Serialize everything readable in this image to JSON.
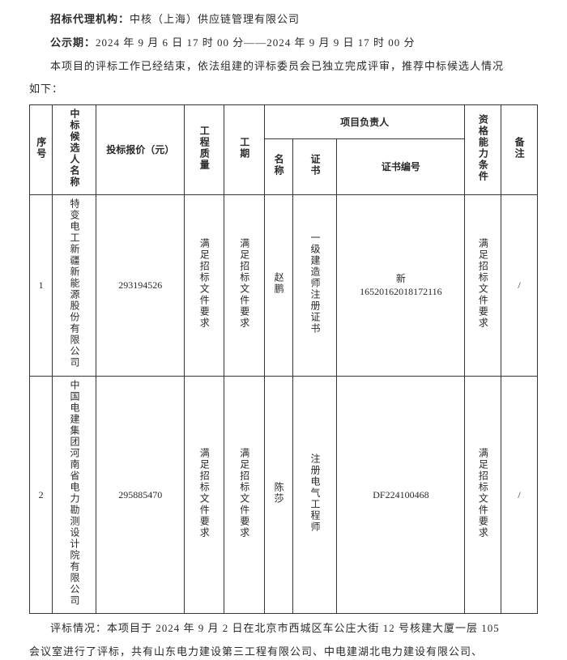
{
  "header": {
    "agency_label": "招标代理机构：",
    "agency": "中核（上海）供应链管理有限公司",
    "period_label": "公示期：",
    "period": "2024 年 9 月 6 日 17 时 00 分——2024 年 9 月 9 日 17 时 00 分",
    "intro1": "本项目的评标工作已经结束，依法组建的评标委员会已独立完成评审，推荐中标候选人情况",
    "intro2": "如下："
  },
  "table": {
    "headers": {
      "seq": "序号",
      "candidate": "中标候选人名称",
      "price": "投标报价（元）",
      "quality": "工程质量",
      "duration": "工期",
      "leader_group": "项目负责人",
      "leader_name": "名称",
      "cert_type": "证书",
      "cert_no": "证书编号",
      "capability": "资格能力条件",
      "remark": "备注"
    },
    "rows": [
      {
        "seq": "1",
        "candidate": "特变电工新疆新能源股份有限公司",
        "price": "293194526",
        "quality": "满足招标文件要求",
        "duration": "满足招标文件要求",
        "leader_name": "赵鹏",
        "cert_type": "一级建造师注册证书",
        "cert_no_prefix": "新",
        "cert_no": "16520162018172116",
        "capability": "满足招标文件要求",
        "remark": "/"
      },
      {
        "seq": "2",
        "candidate": "中国电建集团河南省电力勘测设计院有限公司",
        "price": "295885470",
        "quality": "满足招标文件要求",
        "duration": "满足招标文件要求",
        "leader_name": "陈莎",
        "cert_type": "注册电气工程师",
        "cert_no_prefix": "",
        "cert_no": "DF224100468",
        "capability": "满足招标文件要求",
        "remark": "/"
      }
    ]
  },
  "footer": {
    "line1": "评标情况：本项目于 2024 年 9 月 2 日在北京市西城区车公庄大街 12 号核建大厦一层 105",
    "line2": "会议室进行了评标，共有山东电力建设第三工程有限公司、中电建湖北电力建设有限公司、"
  }
}
